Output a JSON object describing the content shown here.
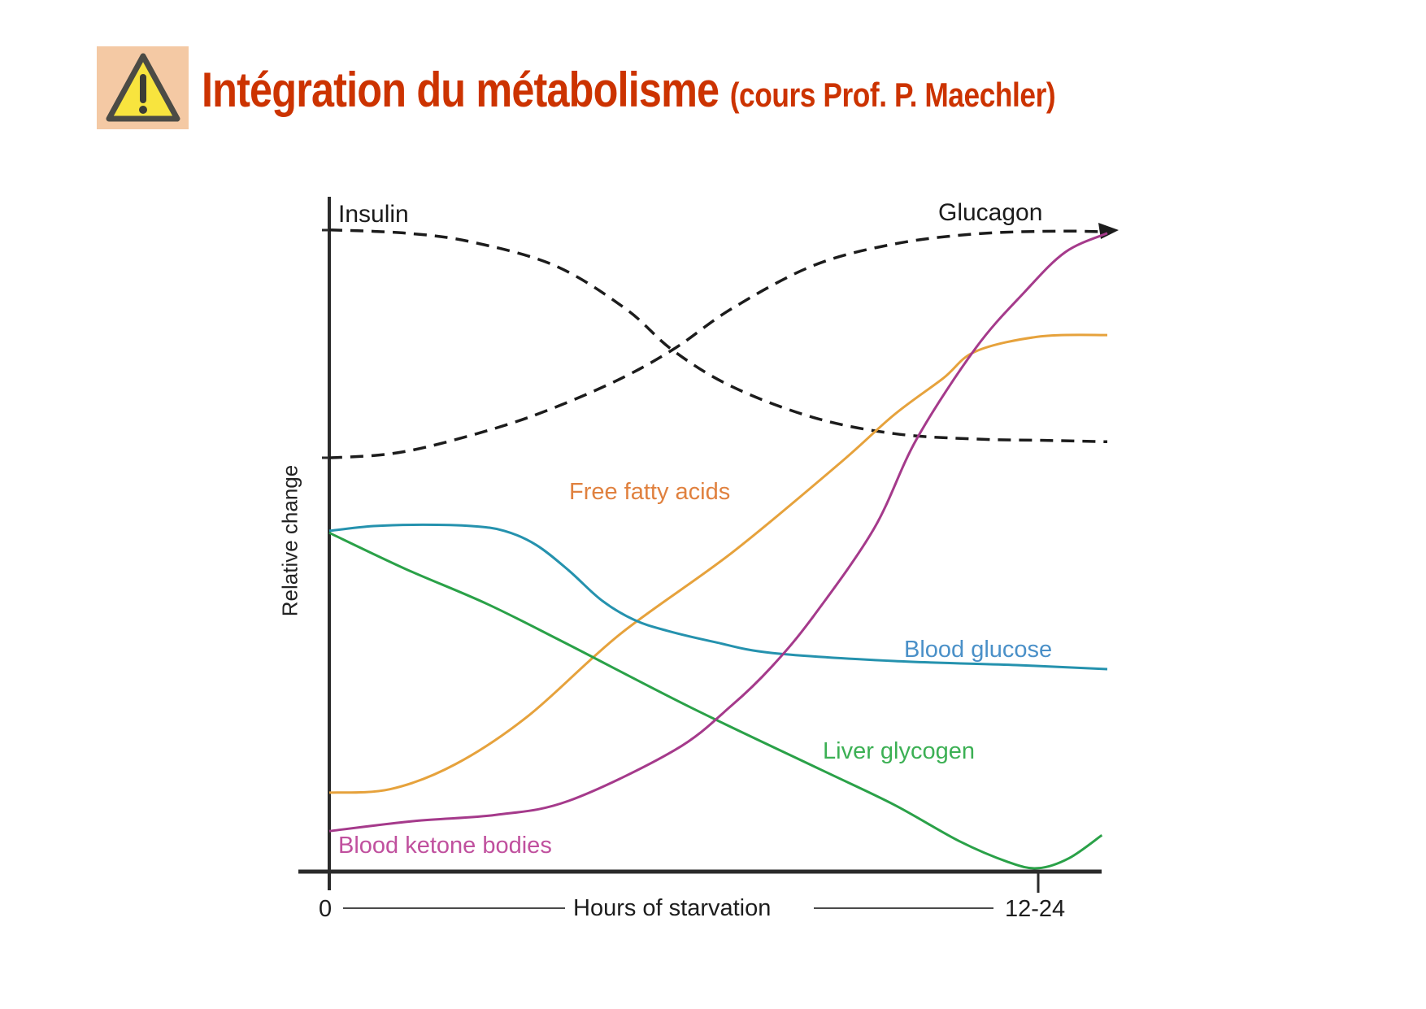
{
  "slide": {
    "title": "Intégration du métabolisme",
    "title_suffix": "(cours Prof. P. Maechler)",
    "title_color": "#cc3300",
    "warning_icon": {
      "box_bg": "#f4c9a4",
      "triangle_fill": "#f8e43e",
      "triangle_stroke": "#4b4b45",
      "exclamation_color": "#3c3c36"
    }
  },
  "chart_data": {
    "type": "line",
    "title": "",
    "xlabel": "Hours of starvation",
    "ylabel": "Relative change",
    "x_tick_labels": [
      "0",
      "12-24"
    ],
    "grid": false,
    "legend_position": "labels-on-curves",
    "axis_color": "#2b2b2b",
    "x_range_units": "0 = start of starvation, 1 = 12-24 hours (right edge)",
    "y_range_units": "relative change, 0 = baseline axis, 1 = top of axis",
    "series": [
      {
        "name": "Insulin",
        "style": "dashed",
        "color": "#1c1c1c",
        "label_color": "#1b1b1b",
        "points": [
          [
            0,
            0.951
          ],
          [
            0.099,
            0.946
          ],
          [
            0.183,
            0.933
          ],
          [
            0.29,
            0.898
          ],
          [
            0.381,
            0.834
          ],
          [
            0.441,
            0.773
          ],
          [
            0.517,
            0.719
          ],
          [
            0.622,
            0.673
          ],
          [
            0.726,
            0.649
          ],
          [
            0.831,
            0.641
          ],
          [
            0.92,
            0.639
          ],
          [
            1,
            0.637
          ]
        ]
      },
      {
        "name": "Glucagon",
        "style": "dashed",
        "color": "#1c1c1c",
        "label_color": "#1b1b1b",
        "points": [
          [
            0,
            0.613
          ],
          [
            0.078,
            0.619
          ],
          [
            0.152,
            0.637
          ],
          [
            0.256,
            0.673
          ],
          [
            0.361,
            0.723
          ],
          [
            0.441,
            0.773
          ],
          [
            0.517,
            0.834
          ],
          [
            0.622,
            0.898
          ],
          [
            0.726,
            0.93
          ],
          [
            0.831,
            0.945
          ],
          [
            0.935,
            0.949
          ],
          [
            1,
            0.948
          ]
        ]
      },
      {
        "name": "Free fatty acids",
        "style": "solid",
        "color": "#e6a23c",
        "label_color": "#e0813f",
        "points": [
          [
            0,
            0.117
          ],
          [
            0.078,
            0.122
          ],
          [
            0.162,
            0.159
          ],
          [
            0.256,
            0.231
          ],
          [
            0.374,
            0.352
          ],
          [
            0.517,
            0.472
          ],
          [
            0.656,
            0.605
          ],
          [
            0.726,
            0.677
          ],
          [
            0.789,
            0.731
          ],
          [
            0.831,
            0.771
          ],
          [
            0.914,
            0.793
          ],
          [
            1,
            0.795
          ]
        ]
      },
      {
        "name": "Blood glucose",
        "style": "solid",
        "color": "#2592ae",
        "label_color": "#4a90c8",
        "points": [
          [
            0,
            0.505
          ],
          [
            0.057,
            0.512
          ],
          [
            0.12,
            0.514
          ],
          [
            0.183,
            0.512
          ],
          [
            0.225,
            0.505
          ],
          [
            0.266,
            0.484
          ],
          [
            0.308,
            0.446
          ],
          [
            0.35,
            0.402
          ],
          [
            0.392,
            0.373
          ],
          [
            0.434,
            0.357
          ],
          [
            0.496,
            0.34
          ],
          [
            0.569,
            0.324
          ],
          [
            0.726,
            0.312
          ],
          [
            0.883,
            0.306
          ],
          [
            1,
            0.3
          ]
        ]
      },
      {
        "name": "Liver glycogen",
        "style": "solid",
        "color": "#2aa148",
        "label_color": "#3cb054",
        "points": [
          [
            0,
            0.502
          ],
          [
            0.099,
            0.448
          ],
          [
            0.204,
            0.396
          ],
          [
            0.308,
            0.336
          ],
          [
            0.465,
            0.243
          ],
          [
            0.632,
            0.151
          ],
          [
            0.726,
            0.099
          ],
          [
            0.81,
            0.045
          ],
          [
            0.873,
            0.014
          ],
          [
            0.911,
            0.005
          ],
          [
            0.951,
            0.02
          ],
          [
            0.993,
            0.054
          ]
        ]
      },
      {
        "name": "Blood ketone bodies",
        "style": "solid",
        "color": "#a53a8b",
        "label_color": "#c0509e",
        "points": [
          [
            0,
            0.06
          ],
          [
            0.11,
            0.075
          ],
          [
            0.214,
            0.084
          ],
          [
            0.308,
            0.105
          ],
          [
            0.444,
            0.18
          ],
          [
            0.517,
            0.246
          ],
          [
            0.569,
            0.304
          ],
          [
            0.622,
            0.378
          ],
          [
            0.7,
            0.508
          ],
          [
            0.755,
            0.641
          ],
          [
            0.831,
            0.776
          ],
          [
            0.893,
            0.858
          ],
          [
            0.946,
            0.918
          ],
          [
            1,
            0.946
          ]
        ]
      }
    ]
  }
}
